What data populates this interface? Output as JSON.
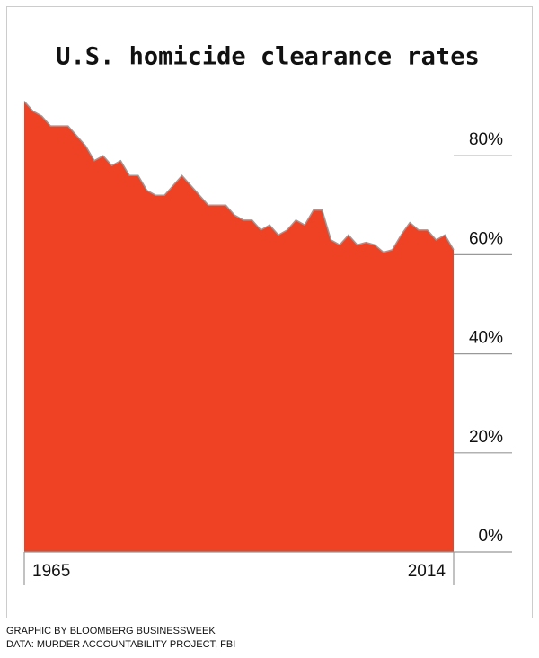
{
  "chart_data": {
    "type": "area",
    "title": "U.S. homicide clearance rates",
    "x": [
      1965,
      1966,
      1967,
      1968,
      1969,
      1970,
      1971,
      1972,
      1973,
      1974,
      1975,
      1976,
      1977,
      1978,
      1979,
      1980,
      1981,
      1982,
      1983,
      1984,
      1985,
      1986,
      1987,
      1988,
      1989,
      1990,
      1991,
      1992,
      1993,
      1994,
      1995,
      1996,
      1997,
      1998,
      1999,
      2000,
      2001,
      2002,
      2003,
      2004,
      2005,
      2006,
      2007,
      2008,
      2009,
      2010,
      2011,
      2012,
      2013,
      2014
    ],
    "values": [
      91,
      89,
      88,
      86,
      86,
      86,
      84,
      82,
      79,
      80,
      78,
      79,
      76,
      76,
      73,
      72,
      72,
      74,
      76,
      74,
      72,
      70,
      70,
      70,
      68,
      67,
      67,
      65,
      66,
      64,
      65,
      67,
      66,
      69,
      69,
      63,
      62,
      64,
      62,
      62.5,
      62,
      60.5,
      61,
      64,
      66.5,
      65,
      65,
      63,
      64,
      61
    ],
    "color": "#ef4123",
    "line_color": "#999999",
    "xlim": [
      1965,
      2014
    ],
    "xticks": [
      1965,
      2014
    ],
    "ylim": [
      0,
      93
    ],
    "yticks": [
      {
        "value": 0,
        "label": "0%"
      },
      {
        "value": 20,
        "label": "20%"
      },
      {
        "value": 40,
        "label": "40%"
      },
      {
        "value": 60,
        "label": "60%"
      },
      {
        "value": 80,
        "label": "80%"
      }
    ],
    "grid": true,
    "source": [
      "GRAPHIC BY BLOOMBERG BUSINESSWEEK",
      "DATA: MURDER ACCOUNTABILITY PROJECT, FBI"
    ]
  }
}
